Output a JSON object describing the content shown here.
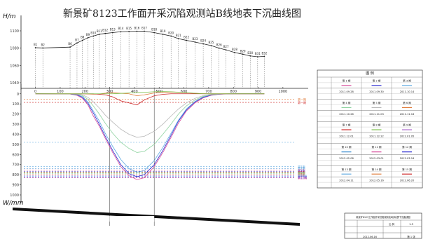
{
  "chart_data": [
    {
      "type": "line",
      "title": "新景矿8123工作面开采沉陷观测站B线地表下沉曲线图",
      "ylabel_top": "H/m",
      "ylabel_bottom": "W/mm",
      "x_ticks": [
        0,
        100,
        200,
        300,
        400,
        500,
        600,
        700,
        800,
        900,
        1000
      ],
      "x_tick_labels": [
        "0",
        "100",
        "200",
        "300",
        "400",
        "500",
        "600",
        "700",
        "800",
        "900",
        "1000"
      ],
      "xlim": [
        -30,
        1040
      ],
      "elevation": {
        "ylim": [
          1040,
          1100
        ],
        "ticks": [
          1040,
          1060,
          1080,
          1100
        ],
        "tick_labels": [
          "1040",
          "1060",
          "1080",
          "1100"
        ],
        "stations": [
          "B1",
          "B2",
          "B6",
          "B7",
          "B8",
          "B9",
          "B10",
          "B11",
          "B12",
          "B13",
          "B14",
          "B15",
          "B16",
          "B17",
          "B18",
          "B19",
          "B20",
          "B21",
          "B22",
          "B23",
          "B24",
          "B25",
          "B26",
          "B27",
          "B28",
          "B29",
          "B30",
          "B31",
          "B32"
        ],
        "x": [
          0,
          30,
          140,
          168,
          190,
          212,
          234,
          258,
          282,
          312,
          345,
          378,
          410,
          440,
          480,
          515,
          548,
          578,
          610,
          645,
          678,
          710,
          742,
          770,
          805,
          838,
          868,
          898,
          925
        ],
        "h": [
          1080.5,
          1080.2,
          1081.2,
          1086,
          1089,
          1092,
          1094,
          1096,
          1097,
          1098,
          1099,
          1099.3,
          1099.5,
          1099.6,
          1098,
          1096,
          1094,
          1091,
          1089,
          1087,
          1085,
          1083,
          1080,
          1078,
          1075,
          1073,
          1071,
          1070,
          1070.5
        ]
      },
      "subsidence": {
        "ylim": [
          -40,
          1000
        ],
        "ticks": [
          0,
          100,
          200,
          300,
          400,
          500,
          600,
          700,
          800,
          900,
          1000
        ],
        "tick_labels": [
          "0",
          "100",
          "200",
          "300",
          "400",
          "500",
          "600",
          "700",
          "800",
          "900",
          "1000"
        ],
        "x": [
          0,
          30,
          140,
          168,
          190,
          212,
          234,
          258,
          282,
          312,
          345,
          378,
          410,
          440,
          480,
          515,
          548,
          578,
          610,
          645,
          678,
          710,
          742,
          770,
          805,
          838,
          868,
          898,
          925
        ],
        "series": [
          {
            "color": "#d64a9a",
            "values": [
              -2,
              0,
              2,
              15,
              45,
              110,
              220,
              320,
              440,
              580,
              720,
              810,
              848,
              830,
              720,
              580,
              430,
              290,
              170,
              90,
              40,
              15,
              5,
              2,
              0,
              0,
              0,
              0,
              0
            ]
          },
          {
            "color": "#2a2ad0",
            "values": [
              0,
              0,
              2,
              10,
              35,
              95,
              190,
              300,
              420,
              560,
              700,
              790,
              820,
              800,
              700,
              560,
              410,
              270,
              160,
              80,
              35,
              12,
              4,
              1,
              0,
              0,
              0,
              0,
              0
            ]
          },
          {
            "color": "#5ea8e0",
            "values": [
              0,
              0,
              1,
              8,
              28,
              80,
              170,
              270,
              390,
              520,
              650,
              740,
              775,
              760,
              660,
              530,
              390,
              260,
              150,
              75,
              30,
              10,
              3,
              1,
              0,
              0,
              0,
              0,
              0
            ]
          },
          {
            "color": "#8fd3a0",
            "values": [
              0,
              0,
              1,
              5,
              18,
              55,
              120,
              200,
              290,
              390,
              480,
              540,
              580,
              570,
              500,
              400,
              300,
              200,
              120,
              60,
              25,
              8,
              2,
              0,
              0,
              0,
              0,
              0,
              0
            ]
          },
          {
            "color": "#b8b8b8",
            "values": [
              0,
              0,
              0,
              3,
              10,
              35,
              80,
              140,
              210,
              280,
              350,
              400,
              430,
              420,
              370,
              300,
              220,
              150,
              90,
              45,
              18,
              5,
              1,
              0,
              0,
              0,
              0,
              0,
              0
            ]
          },
          {
            "color": "#e07b39",
            "values": [
              0,
              0,
              0,
              0,
              0,
              2,
              4,
              2,
              -6,
              -10,
              -5,
              0,
              20,
              10,
              -8,
              -14,
              -18,
              -16,
              -10,
              -5,
              -2,
              0,
              0,
              0,
              0,
              0,
              0,
              0,
              0
            ]
          },
          {
            "color": "#cc2222",
            "values": [
              0,
              0,
              0,
              0,
              0,
              0,
              0,
              5,
              10,
              30,
              70,
              90,
              110,
              60,
              20,
              5,
              0,
              0,
              0,
              0,
              0,
              0,
              0,
              0,
              0,
              0,
              0,
              0,
              0
            ]
          },
          {
            "color": "#7cbf4a",
            "values": [
              0,
              0,
              0,
              0,
              0,
              0,
              0,
              0,
              0,
              0,
              -4,
              -8,
              -12,
              -15,
              -20,
              -22,
              -20,
              -15,
              -10,
              -5,
              0,
              0,
              0,
              0,
              0,
              0,
              0,
              0,
              0
            ]
          }
        ],
        "reference_lines": [
          {
            "value": 55,
            "color": "#e07b39",
            "label": "第一期"
          },
          {
            "value": 85,
            "color": "#cc2222",
            "label": "第一期"
          },
          {
            "value": 480,
            "color": "#5ea8e0",
            "label": ""
          },
          {
            "value": 718,
            "color": "#5ea8e0",
            "label": "第1期"
          },
          {
            "value": 738,
            "color": "#3a8cd0",
            "label": "第2期"
          },
          {
            "value": 756,
            "color": "#d64a9a",
            "label": "第3期"
          },
          {
            "value": 766,
            "color": "#2a2ad0",
            "label": "第4期"
          },
          {
            "value": 774,
            "color": "#cc2222",
            "label": "第5期"
          },
          {
            "value": 782,
            "color": "#7cbf4a",
            "label": "第6期"
          },
          {
            "value": 790,
            "color": "#8fd3a0",
            "label": "第7期"
          },
          {
            "value": 798,
            "color": "#e07b39",
            "label": "第8期"
          },
          {
            "value": 806,
            "color": "#aa66cc",
            "label": "第9期"
          },
          {
            "value": 814,
            "color": "#5ea8e0",
            "label": "第10期"
          },
          {
            "value": 822,
            "color": "#2a2ad0",
            "label": "第11期"
          },
          {
            "value": 830,
            "color": "#d64a9a",
            "label": "第12期"
          }
        ]
      }
    }
  ],
  "legend_table": {
    "title": "图  例",
    "rows": [
      [
        "第 1 期",
        "第 2 期",
        "第 3 期"
      ],
      [
        "2011.09.28",
        "2011.09.30",
        "2011.10.14"
      ],
      [
        "第 4 期",
        "第 5 期",
        "第 6 期"
      ],
      [
        "2011.10.26",
        "2011.11.03",
        "2011.11.16"
      ],
      [
        "第 7 期",
        "第 8 期",
        "第 9 期"
      ],
      [
        "2011.12.01",
        "2011.12.22",
        "2012.01.05"
      ],
      [
        "第 10 期",
        "第 11 期",
        "第 12 期"
      ],
      [
        "2012.02.08",
        "2012.03.01",
        "2012.03.16"
      ],
      [
        "第 13 期",
        "第 14 期",
        "第 15 期"
      ],
      [
        "2012.04.11",
        "2012.05.16",
        "2012.06.20"
      ]
    ]
  },
  "title_block": {
    "title": "新景矿8123工作面开采沉陷观测站B线地表下沉曲线图",
    "scale_label": "比 例",
    "scale_value": "1:5",
    "date": "2012.06.16",
    "sheet": "第 1 张"
  }
}
